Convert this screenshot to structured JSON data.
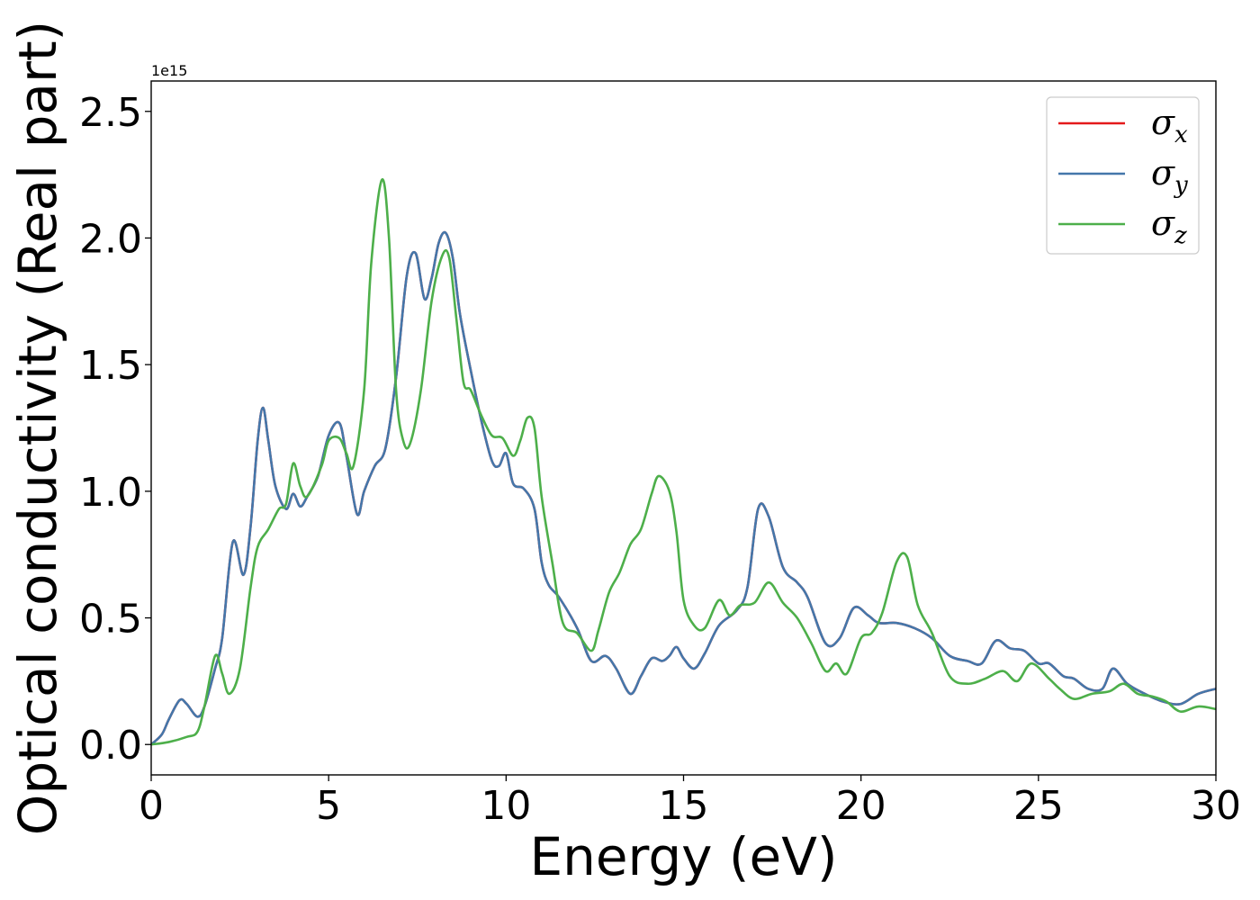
{
  "chart_data": {
    "type": "line",
    "xlabel": "Energy (eV)",
    "ylabel": "Optical conductivity (Real part)",
    "y_offset_label": "1e15",
    "xlim": [
      0,
      30
    ],
    "ylim": [
      -0.12,
      2.62
    ],
    "x_ticks": [
      0,
      5,
      10,
      15,
      20,
      25,
      30
    ],
    "x_tick_labels": [
      "0",
      "5",
      "10",
      "15",
      "20",
      "25",
      "30"
    ],
    "y_ticks": [
      0.0,
      0.5,
      1.0,
      1.5,
      2.0,
      2.5
    ],
    "y_tick_labels": [
      "0.0",
      "0.5",
      "1.0",
      "1.5",
      "2.0",
      "2.5"
    ],
    "grid": false,
    "legend_position": "top-right",
    "series": [
      {
        "name": "σ_x",
        "legend_base": "σ",
        "legend_sub": "x",
        "color": "#e41a1c",
        "x": [
          0,
          0.3,
          0.5,
          0.8,
          1.0,
          1.3,
          1.5,
          1.8,
          2.0,
          2.3,
          2.6,
          2.8,
          3.0,
          3.15,
          3.3,
          3.5,
          3.8,
          4.0,
          4.2,
          4.4,
          4.7,
          5.0,
          5.3,
          5.5,
          5.8,
          6.0,
          6.3,
          6.6,
          6.9,
          7.2,
          7.45,
          7.7,
          7.9,
          8.1,
          8.3,
          8.5,
          8.7,
          9.0,
          9.3,
          9.6,
          9.8,
          10.0,
          10.2,
          10.5,
          10.8,
          11.0,
          11.2,
          11.5,
          12.0,
          12.4,
          12.8,
          13.1,
          13.5,
          13.8,
          14.1,
          14.4,
          14.6,
          14.8,
          15.0,
          15.3,
          15.6,
          16.0,
          16.5,
          16.8,
          17.1,
          17.4,
          17.8,
          18.2,
          18.5,
          19.0,
          19.4,
          19.8,
          20.2,
          20.5,
          21.0,
          21.5,
          22.0,
          22.5,
          23.0,
          23.4,
          23.8,
          24.2,
          24.6,
          25.0,
          25.3,
          25.7,
          26.0,
          26.4,
          26.8,
          27.1,
          27.5,
          28.0,
          28.5,
          29.0,
          29.5,
          30.0
        ],
        "y": [
          0.0,
          0.04,
          0.1,
          0.175,
          0.16,
          0.11,
          0.15,
          0.3,
          0.42,
          0.8,
          0.67,
          0.86,
          1.2,
          1.33,
          1.2,
          1.02,
          0.93,
          0.99,
          0.94,
          0.98,
          1.06,
          1.22,
          1.27,
          1.14,
          0.91,
          1.0,
          1.1,
          1.17,
          1.45,
          1.85,
          1.94,
          1.76,
          1.84,
          1.98,
          2.02,
          1.92,
          1.7,
          1.48,
          1.28,
          1.12,
          1.1,
          1.15,
          1.03,
          1.01,
          0.93,
          0.72,
          0.63,
          0.58,
          0.46,
          0.33,
          0.35,
          0.3,
          0.2,
          0.27,
          0.34,
          0.33,
          0.35,
          0.385,
          0.34,
          0.3,
          0.36,
          0.47,
          0.53,
          0.62,
          0.93,
          0.9,
          0.7,
          0.64,
          0.58,
          0.4,
          0.42,
          0.54,
          0.51,
          0.48,
          0.48,
          0.46,
          0.42,
          0.35,
          0.33,
          0.32,
          0.41,
          0.38,
          0.37,
          0.32,
          0.32,
          0.27,
          0.26,
          0.22,
          0.22,
          0.3,
          0.24,
          0.2,
          0.17,
          0.16,
          0.2,
          0.22
        ]
      },
      {
        "name": "σ_y",
        "legend_base": "σ",
        "legend_sub": "y",
        "color": "#4477aa",
        "x": [
          0,
          0.3,
          0.5,
          0.8,
          1.0,
          1.3,
          1.5,
          1.8,
          2.0,
          2.3,
          2.6,
          2.8,
          3.0,
          3.15,
          3.3,
          3.5,
          3.8,
          4.0,
          4.2,
          4.4,
          4.7,
          5.0,
          5.3,
          5.5,
          5.8,
          6.0,
          6.3,
          6.6,
          6.9,
          7.2,
          7.45,
          7.7,
          7.9,
          8.1,
          8.3,
          8.5,
          8.7,
          9.0,
          9.3,
          9.6,
          9.8,
          10.0,
          10.2,
          10.5,
          10.8,
          11.0,
          11.2,
          11.5,
          12.0,
          12.4,
          12.8,
          13.1,
          13.5,
          13.8,
          14.1,
          14.4,
          14.6,
          14.8,
          15.0,
          15.3,
          15.6,
          16.0,
          16.5,
          16.8,
          17.1,
          17.4,
          17.8,
          18.2,
          18.5,
          19.0,
          19.4,
          19.8,
          20.2,
          20.5,
          21.0,
          21.5,
          22.0,
          22.5,
          23.0,
          23.4,
          23.8,
          24.2,
          24.6,
          25.0,
          25.3,
          25.7,
          26.0,
          26.4,
          26.8,
          27.1,
          27.5,
          28.0,
          28.5,
          29.0,
          29.5,
          30.0
        ],
        "y": [
          0.0,
          0.04,
          0.1,
          0.175,
          0.16,
          0.11,
          0.15,
          0.3,
          0.42,
          0.8,
          0.67,
          0.86,
          1.2,
          1.33,
          1.2,
          1.02,
          0.93,
          0.99,
          0.94,
          0.98,
          1.06,
          1.22,
          1.27,
          1.14,
          0.91,
          1.0,
          1.1,
          1.17,
          1.45,
          1.85,
          1.94,
          1.76,
          1.84,
          1.98,
          2.02,
          1.92,
          1.7,
          1.48,
          1.28,
          1.12,
          1.1,
          1.15,
          1.03,
          1.01,
          0.93,
          0.72,
          0.63,
          0.58,
          0.46,
          0.33,
          0.35,
          0.3,
          0.2,
          0.27,
          0.34,
          0.33,
          0.35,
          0.385,
          0.34,
          0.3,
          0.36,
          0.47,
          0.53,
          0.62,
          0.93,
          0.9,
          0.7,
          0.64,
          0.58,
          0.4,
          0.42,
          0.54,
          0.51,
          0.48,
          0.48,
          0.46,
          0.42,
          0.35,
          0.33,
          0.32,
          0.41,
          0.38,
          0.37,
          0.32,
          0.32,
          0.27,
          0.26,
          0.22,
          0.22,
          0.3,
          0.24,
          0.2,
          0.17,
          0.16,
          0.2,
          0.22
        ]
      },
      {
        "name": "σ_z",
        "legend_base": "σ",
        "legend_sub": "z",
        "color": "#4daf4a",
        "x": [
          0,
          0.5,
          1.0,
          1.3,
          1.5,
          1.8,
          2.0,
          2.2,
          2.5,
          2.8,
          3.0,
          3.3,
          3.6,
          3.8,
          4.0,
          4.2,
          4.4,
          4.8,
          5.0,
          5.3,
          5.5,
          5.7,
          6.0,
          6.2,
          6.5,
          6.7,
          6.9,
          7.1,
          7.3,
          7.6,
          7.9,
          8.2,
          8.4,
          8.6,
          8.8,
          9.0,
          9.3,
          9.6,
          9.9,
          10.2,
          10.4,
          10.6,
          10.8,
          11.0,
          11.3,
          11.6,
          12.0,
          12.4,
          12.6,
          12.9,
          13.2,
          13.5,
          13.8,
          14.1,
          14.3,
          14.6,
          14.8,
          15.0,
          15.3,
          15.6,
          16.0,
          16.3,
          16.6,
          17.0,
          17.4,
          17.8,
          18.2,
          18.6,
          19.0,
          19.3,
          19.6,
          20.0,
          20.3,
          20.6,
          21.0,
          21.3,
          21.6,
          22.0,
          22.5,
          23.0,
          23.5,
          24.0,
          24.4,
          24.8,
          25.3,
          25.6,
          26.0,
          26.5,
          27.0,
          27.4,
          27.8,
          28.2,
          28.6,
          29.0,
          29.5,
          30.0
        ],
        "y": [
          0.0,
          0.01,
          0.03,
          0.05,
          0.15,
          0.35,
          0.28,
          0.2,
          0.3,
          0.62,
          0.78,
          0.85,
          0.93,
          0.95,
          1.11,
          1.02,
          0.98,
          1.1,
          1.2,
          1.21,
          1.15,
          1.1,
          1.4,
          1.9,
          2.23,
          2.0,
          1.4,
          1.2,
          1.19,
          1.4,
          1.75,
          1.93,
          1.92,
          1.68,
          1.43,
          1.4,
          1.3,
          1.22,
          1.21,
          1.14,
          1.2,
          1.29,
          1.25,
          0.98,
          0.72,
          0.48,
          0.44,
          0.37,
          0.45,
          0.6,
          0.68,
          0.79,
          0.85,
          0.99,
          1.06,
          1.0,
          0.84,
          0.57,
          0.47,
          0.46,
          0.57,
          0.51,
          0.55,
          0.56,
          0.64,
          0.56,
          0.5,
          0.4,
          0.29,
          0.32,
          0.28,
          0.42,
          0.44,
          0.52,
          0.72,
          0.74,
          0.55,
          0.44,
          0.27,
          0.24,
          0.26,
          0.29,
          0.25,
          0.32,
          0.26,
          0.22,
          0.18,
          0.2,
          0.21,
          0.24,
          0.2,
          0.19,
          0.17,
          0.13,
          0.15,
          0.14
        ]
      }
    ]
  }
}
